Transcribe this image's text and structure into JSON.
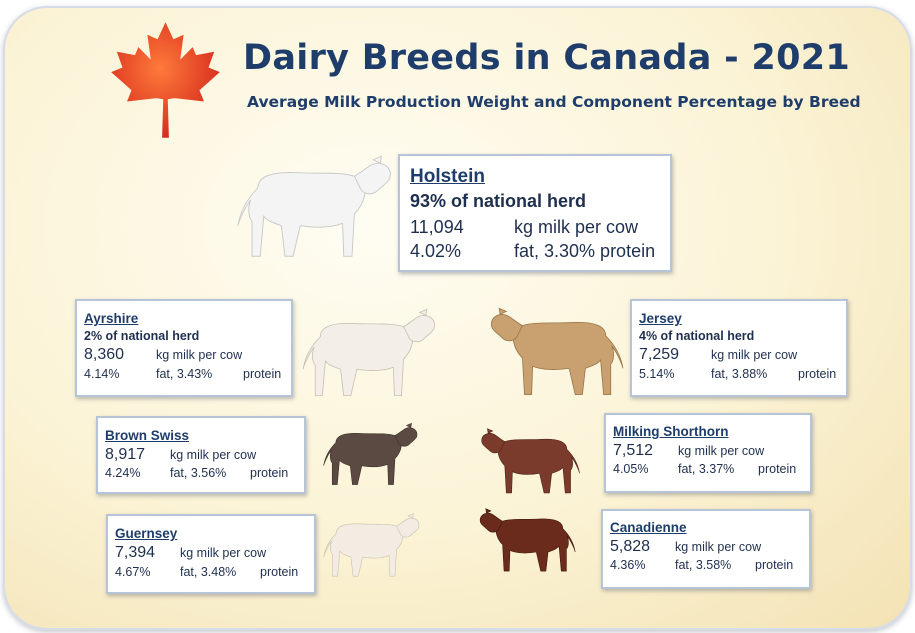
{
  "header": {
    "title": "Dairy Breeds in Canada - 2021",
    "subtitle": "Average Milk Production Weight and Component Percentage by Breed"
  },
  "breeds": {
    "holstein": {
      "name": "Holstein",
      "share": "93% of national herd",
      "milk": "11,094",
      "milk_unit": "kg milk per cow",
      "fat_pct": "4.02%",
      "fat_label": "fat,  3.30% protein"
    },
    "ayrshire": {
      "name": "Ayrshire",
      "share": "2% of national herd",
      "milk": "8,360",
      "milk_unit": "kg milk per cow",
      "fat_pct": "4.14%",
      "fat_label": "fat, 3.43%",
      "protein_label": "protein"
    },
    "jersey": {
      "name": "Jersey",
      "share": "4% of national herd",
      "milk": "7,259",
      "milk_unit": "kg milk per cow",
      "fat_pct": "5.14%",
      "fat_label": "fat, 3.88%",
      "protein_label": "protein"
    },
    "brown_swiss": {
      "name": "Brown Swiss",
      "milk": "8,917",
      "milk_unit": "kg milk per cow",
      "fat_pct": "4.24%",
      "fat_label": "fat, 3.56%",
      "protein_label": "protein"
    },
    "milking_shorthorn": {
      "name": "Milking Shorthorn",
      "milk": "7,512",
      "milk_unit": "kg milk per cow",
      "fat_pct": "4.05%",
      "fat_label": "fat, 3.37%",
      "protein_label": "protein"
    },
    "guernsey": {
      "name": "Guernsey",
      "milk": "7,394",
      "milk_unit": "kg milk per cow",
      "fat_pct": "4.67%",
      "fat_label": "fat, 3.48%",
      "protein_label": "protein"
    },
    "canadienne": {
      "name": "Canadienne",
      "milk": "5,828",
      "milk_unit": "kg milk per cow",
      "fat_pct": "4.36%",
      "fat_label": "fat, 3.58%",
      "protein_label": "protein"
    }
  },
  "colors": {
    "title": "#1f3d6b",
    "maple_leaf": "#e0301e",
    "card_border": "#b7c3d6",
    "background": "#fbf3d5"
  },
  "icons": {
    "logo": "maple-leaf-icon",
    "holstein": "holstein-cow-icon",
    "ayrshire": "ayrshire-cow-icon",
    "jersey": "jersey-cow-icon",
    "brown_swiss": "brown-swiss-cow-icon",
    "milking_shorthorn": "milking-shorthorn-cow-icon",
    "guernsey": "guernsey-cow-icon",
    "canadienne": "canadienne-cow-icon"
  }
}
